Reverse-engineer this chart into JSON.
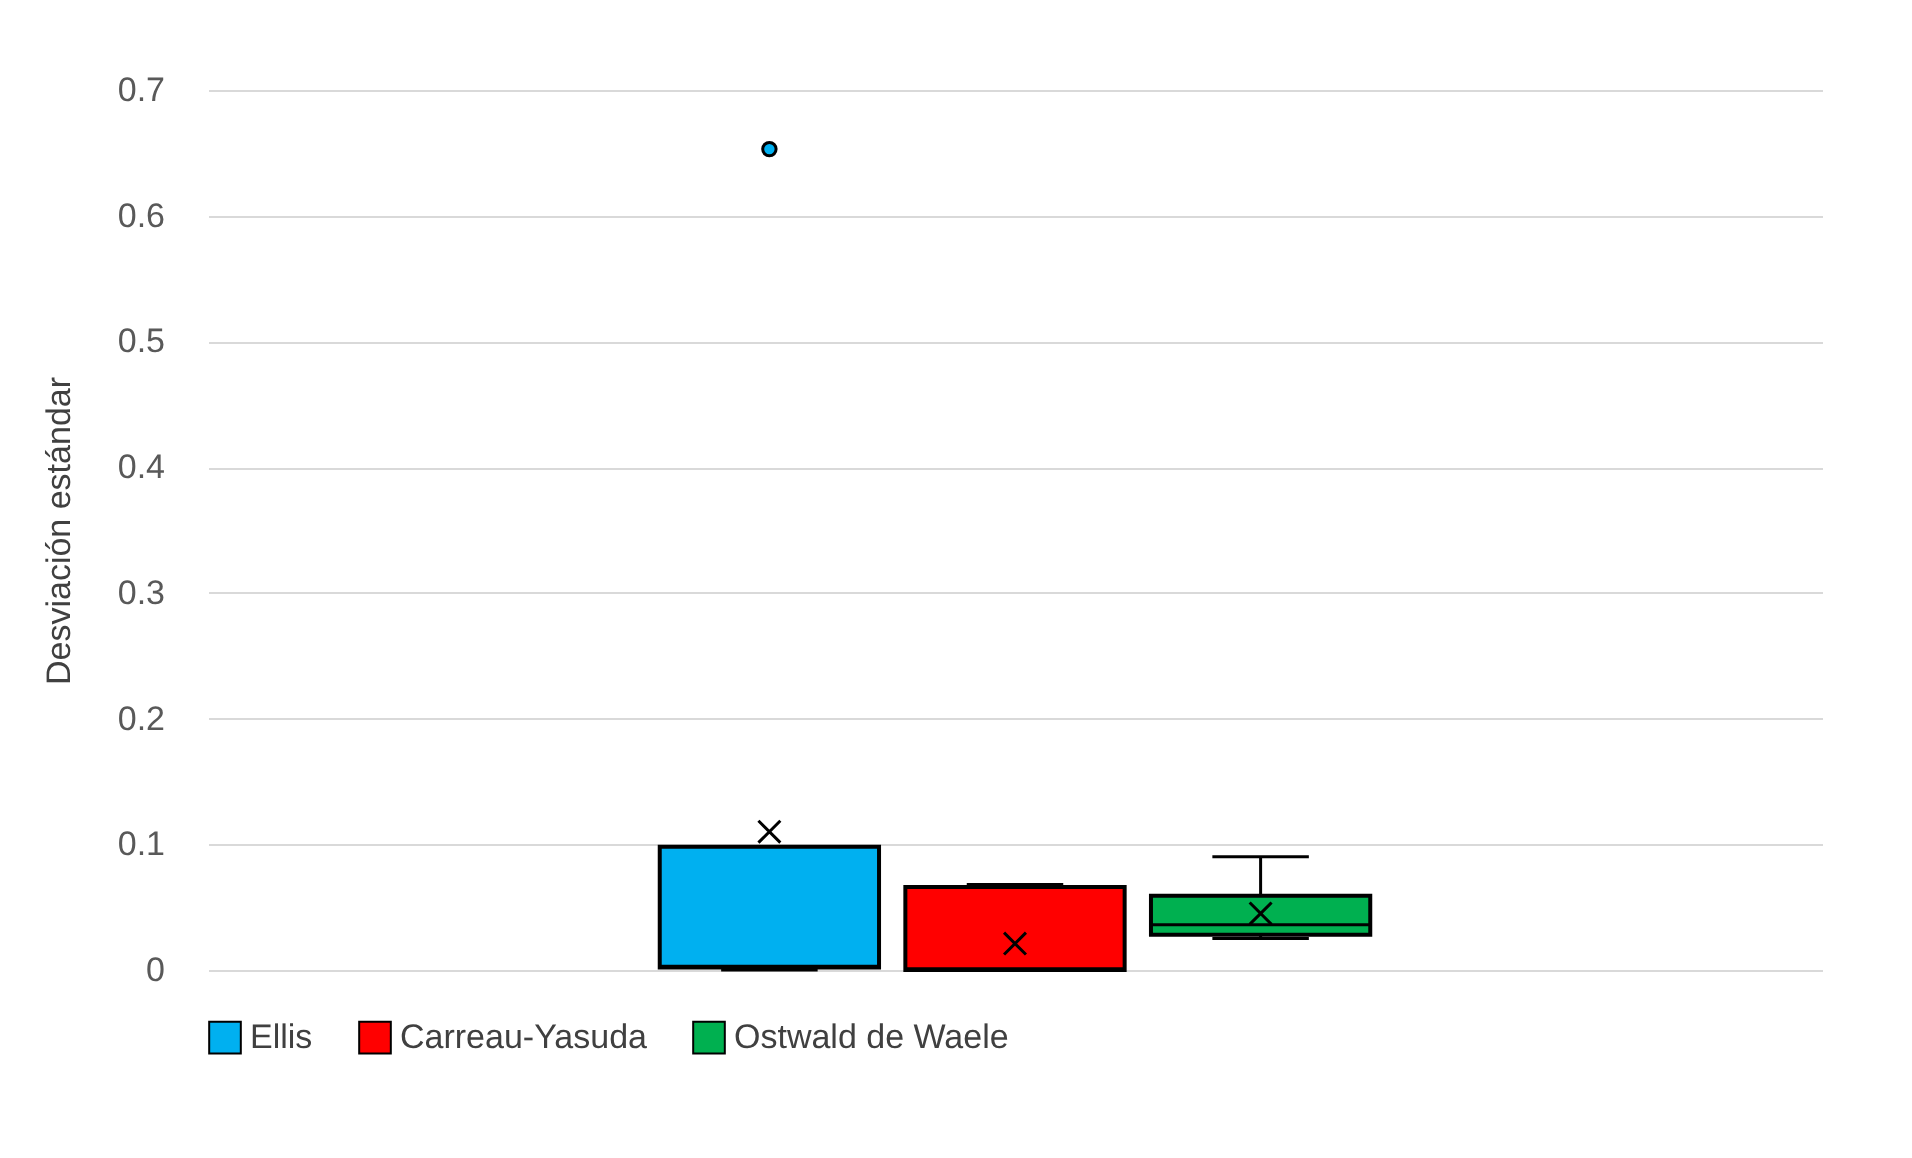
{
  "chart_data": {
    "type": "box",
    "ylabel": "Desviación estándar",
    "categories": [
      null
    ],
    "ylim": [
      0,
      0.7
    ],
    "yticks": [
      0,
      0.1,
      0.2,
      0.3,
      0.4,
      0.5,
      0.6,
      0.7
    ],
    "grid": "y",
    "legend": "bottom",
    "tick_labels": "y",
    "series": [
      {
        "name": "Ellis",
        "color": "#00b0f0",
        "boxes": [
          {
            "low": 0,
            "q1": 0.002,
            "median": 0.003,
            "q3": 0.098,
            "high": 0.098,
            "mean": 0.11,
            "outliers": [
              0.653
            ]
          }
        ]
      },
      {
        "name": "Carreau-Yasuda",
        "color": "#ff0000",
        "boxes": [
          {
            "low": 0,
            "q1": 0,
            "median": 0.001,
            "q3": 0.066,
            "high": 0.068,
            "mean": 0.021
          }
        ]
      },
      {
        "name": "Ostwald de Waele",
        "color": "#00b050",
        "boxes": [
          {
            "low": 0.025,
            "q1": 0.028,
            "median": 0.036,
            "q3": 0.059,
            "high": 0.09,
            "mean": 0.045
          }
        ]
      }
    ]
  }
}
